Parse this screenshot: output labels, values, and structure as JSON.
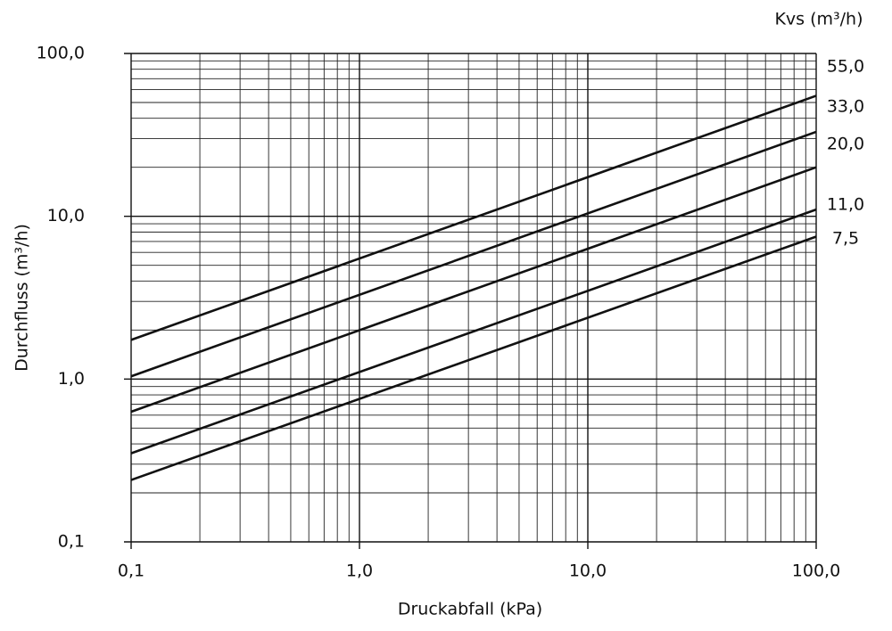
{
  "chart_data": {
    "type": "line",
    "x_label": "Druckabfall (kPa)",
    "y_label": "Durchfluss (m³/h)",
    "legend_title": "Kvs (m³/h)",
    "log_x": true,
    "log_y": true,
    "grid": true,
    "xlim": [
      0.1,
      100
    ],
    "ylim": [
      0.1,
      100
    ],
    "xticks": [
      {
        "value": 0.1,
        "label": "0,1"
      },
      {
        "value": 1,
        "label": "1,0"
      },
      {
        "value": 10,
        "label": "10,0"
      },
      {
        "value": 100,
        "label": "100,0"
      }
    ],
    "yticks": [
      {
        "value": 0.1,
        "label": "0,1"
      },
      {
        "value": 1,
        "label": "1,0"
      },
      {
        "value": 10,
        "label": "10,0"
      },
      {
        "value": 100,
        "label": "100,0"
      }
    ],
    "minor_ticks": [
      0.2,
      0.3,
      0.4,
      0.5,
      0.6,
      0.7,
      0.8,
      0.9,
      2,
      3,
      4,
      5,
      6,
      7,
      8,
      9,
      20,
      30,
      40,
      50,
      60,
      70,
      80,
      90
    ],
    "x": [
      0.1,
      100
    ],
    "series": [
      {
        "name": "55,0",
        "color": "#111111",
        "values": [
          1.74,
          55
        ]
      },
      {
        "name": "33,0",
        "color": "#111111",
        "values": [
          1.04,
          33
        ]
      },
      {
        "name": "20,0",
        "color": "#111111",
        "values": [
          0.63,
          20
        ]
      },
      {
        "name": "11,0",
        "color": "#111111",
        "values": [
          0.35,
          11
        ]
      },
      {
        "name": "7,5",
        "color": "#111111",
        "values": [
          0.24,
          7.5
        ]
      }
    ]
  }
}
